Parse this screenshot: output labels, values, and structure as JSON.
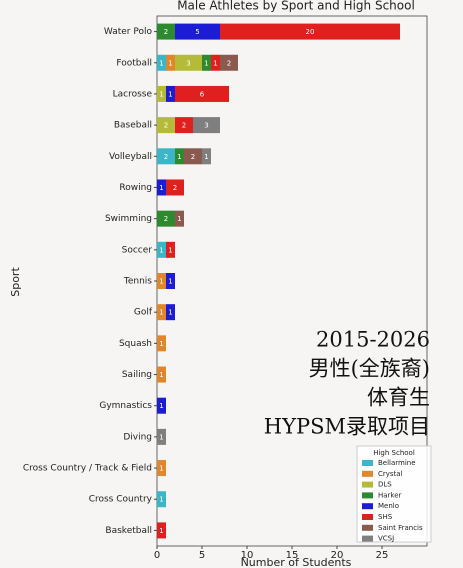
{
  "chart_data": {
    "type": "stacked-barh",
    "title": "Male Athletes by Sport and High School",
    "x_label": "Number of Students",
    "y_label": "Sport",
    "categories": [
      "Water Polo",
      "Football",
      "Lacrosse",
      "Baseball",
      "Volleyball",
      "Rowing",
      "Swimming",
      "Soccer",
      "Tennis",
      "Golf",
      "Squash",
      "Sailing",
      "Gymnastics",
      "Diving",
      "Cross Country / Track & Field",
      "Cross Country",
      "Basketball"
    ],
    "series": [
      {
        "name": "Bellarmine",
        "color": "#3bb6c8",
        "values": [
          0,
          1,
          0,
          0,
          2,
          0,
          0,
          1,
          0,
          0,
          0,
          0,
          0,
          0,
          0,
          1,
          0
        ]
      },
      {
        "name": "Crystal",
        "color": "#e0862c",
        "values": [
          0,
          1,
          0,
          0,
          0,
          0,
          0,
          0,
          1,
          1,
          1,
          1,
          0,
          0,
          1,
          0,
          0
        ]
      },
      {
        "name": "DLS",
        "color": "#b4bb38",
        "values": [
          0,
          3,
          1,
          2,
          0,
          0,
          0,
          0,
          0,
          0,
          0,
          0,
          0,
          0,
          0,
          0,
          0
        ]
      },
      {
        "name": "Harker",
        "color": "#2e8a2e",
        "values": [
          2,
          1,
          0,
          0,
          1,
          0,
          2,
          0,
          0,
          0,
          0,
          0,
          0,
          0,
          0,
          0,
          0
        ]
      },
      {
        "name": "Menlo",
        "color": "#1c1cd4",
        "values": [
          5,
          0,
          1,
          0,
          0,
          1,
          0,
          0,
          1,
          1,
          0,
          0,
          1,
          0,
          0,
          0,
          0
        ]
      },
      {
        "name": "SHS",
        "color": "#e01f1f",
        "values": [
          20,
          1,
          6,
          2,
          0,
          2,
          0,
          1,
          0,
          0,
          0,
          0,
          0,
          0,
          0,
          0,
          1
        ]
      },
      {
        "name": "Saint Francis",
        "color": "#8a5a4f",
        "values": [
          0,
          2,
          0,
          0,
          2,
          0,
          1,
          0,
          0,
          0,
          0,
          0,
          0,
          0,
          0,
          0,
          0
        ]
      },
      {
        "name": "VCSJ",
        "color": "#7f7f7f",
        "values": [
          0,
          0,
          0,
          3,
          1,
          0,
          0,
          0,
          0,
          0,
          0,
          0,
          0,
          1,
          0,
          0,
          0
        ]
      }
    ],
    "legend_title": "High School",
    "legend": "lower right",
    "xlim": [
      0,
      30
    ],
    "xticks": [
      0,
      5,
      10,
      15,
      20,
      25
    ],
    "annotation": [
      "2015-2026",
      "男性(全族裔)",
      "体育生",
      "HYPSM录取项目"
    ]
  }
}
